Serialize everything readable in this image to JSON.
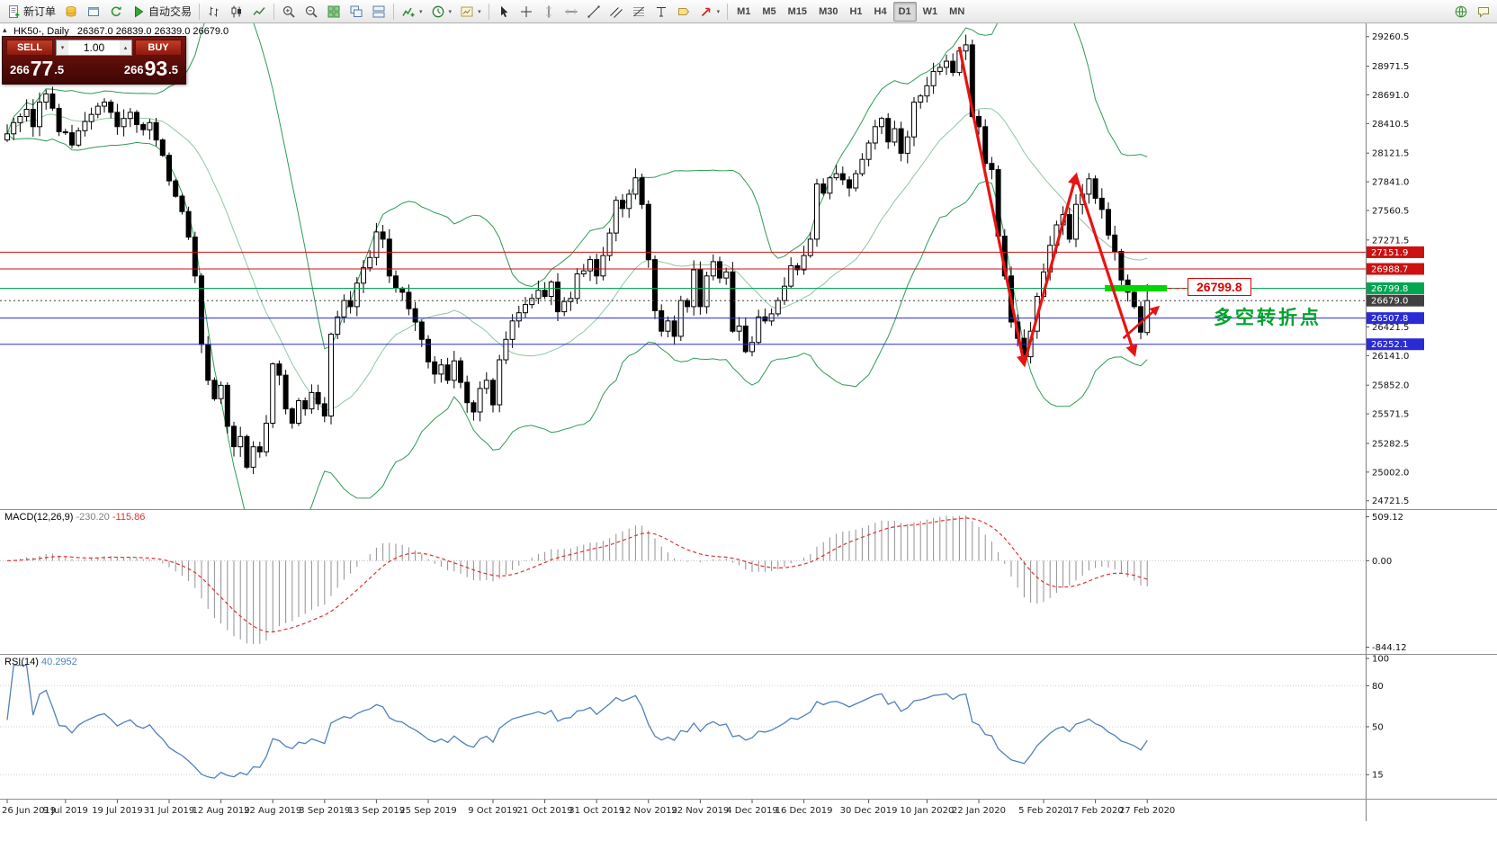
{
  "toolbar": {
    "items": [
      {
        "t": "b",
        "n": "new-order",
        "i": "doc",
        "l": "新订单"
      },
      {
        "t": "b",
        "n": "market-watch",
        "i": "coins"
      },
      {
        "t": "b",
        "n": "data-window",
        "i": "window"
      },
      {
        "t": "b",
        "n": "refresh",
        "i": "refresh"
      },
      {
        "t": "b",
        "n": "auto-trading",
        "i": "play",
        "l": "自动交易"
      },
      {
        "t": "s"
      },
      {
        "t": "b",
        "n": "bar-chart-mode",
        "i": "bars"
      },
      {
        "t": "b",
        "n": "candlestick-mode",
        "i": "candles"
      },
      {
        "t": "b",
        "n": "line-chart-mode",
        "i": "line"
      },
      {
        "t": "s"
      },
      {
        "t": "b",
        "n": "zoom-in",
        "i": "zoomin"
      },
      {
        "t": "b",
        "n": "zoom-out",
        "i": "zoomout"
      },
      {
        "t": "b",
        "n": "tile-windows",
        "i": "tile"
      },
      {
        "t": "b",
        "n": "cascade-windows",
        "i": "cascade"
      },
      {
        "t": "b",
        "n": "arrange-windows",
        "i": "arrange"
      },
      {
        "t": "s"
      },
      {
        "t": "b",
        "n": "indicators",
        "i": "indicator",
        "dd": true
      },
      {
        "t": "b",
        "n": "periods",
        "i": "clock",
        "dd": true
      },
      {
        "t": "b",
        "n": "templates",
        "i": "template",
        "dd": true
      },
      {
        "t": "s"
      },
      {
        "t": "b",
        "n": "cursor-tool",
        "i": "cursor"
      },
      {
        "t": "b",
        "n": "crosshair-tool",
        "i": "cross"
      },
      {
        "t": "b",
        "n": "vertical-line-tool",
        "i": "vline"
      },
      {
        "t": "b",
        "n": "horizontal-line-tool",
        "i": "hline"
      },
      {
        "t": "b",
        "n": "trendline-tool",
        "i": "trend"
      },
      {
        "t": "b",
        "n": "channel-tool",
        "i": "channel"
      },
      {
        "t": "b",
        "n": "fibonacci-tool",
        "i": "fibo"
      },
      {
        "t": "b",
        "n": "text-tool",
        "i": "text"
      },
      {
        "t": "b",
        "n": "label-tool",
        "i": "label"
      },
      {
        "t": "b",
        "n": "arrows-tool",
        "i": "arrow",
        "dd": true
      },
      {
        "t": "s"
      }
    ],
    "timeframes": [
      "M1",
      "M5",
      "M15",
      "M30",
      "H1",
      "H4",
      "D1",
      "W1",
      "MN"
    ],
    "active_timeframe": "D1",
    "right_items": [
      {
        "n": "community",
        "i": "globe"
      },
      {
        "n": "chat",
        "i": "chat"
      }
    ]
  },
  "chart_header": "HK50-, Daily   26367.0 26839.0 26339.0 26679.0",
  "one_click": {
    "sell_label": "SELL",
    "buy_label": "BUY",
    "volume": "1.00",
    "sell_price": {
      "prefix": "266",
      "big": "77",
      "frac": ".5"
    },
    "buy_price": {
      "prefix": "266",
      "big": "93",
      "frac": ".5"
    }
  },
  "chart_data": {
    "type": "candlestick",
    "symbol": "HK50-",
    "timeframe": "Daily",
    "last_ohlc": {
      "open": 26367.0,
      "high": 26839.0,
      "low": 26339.0,
      "close": 26679.0
    },
    "closes": [
      28310,
      28420,
      28480,
      28550,
      28380,
      28620,
      28700,
      28560,
      28330,
      28320,
      28200,
      28340,
      28430,
      28500,
      28580,
      28620,
      28520,
      28380,
      28460,
      28520,
      28400,
      28350,
      28420,
      28250,
      28100,
      27850,
      27700,
      27550,
      27300,
      26920,
      26250,
      25900,
      25720,
      25850,
      25450,
      25250,
      25350,
      25050,
      25250,
      25200,
      25480,
      26060,
      25950,
      25620,
      25480,
      25700,
      25620,
      25780,
      25670,
      25550,
      26350,
      26520,
      26680,
      26620,
      26850,
      27000,
      27100,
      27350,
      27280,
      26920,
      26800,
      26760,
      26600,
      26470,
      26300,
      26080,
      25960,
      26050,
      25900,
      26090,
      25880,
      25680,
      25590,
      25820,
      25900,
      25660,
      26100,
      26300,
      26480,
      26560,
      26640,
      26700,
      26780,
      26720,
      26860,
      26570,
      26670,
      26700,
      26940,
      26970,
      27080,
      26920,
      27120,
      27340,
      27660,
      27580,
      27720,
      27880,
      27620,
      27080,
      26580,
      26380,
      26480,
      26330,
      26680,
      26620,
      26980,
      26620,
      26920,
      27060,
      26900,
      26960,
      26380,
      26430,
      26180,
      26270,
      26520,
      26480,
      26550,
      26680,
      26820,
      27020,
      26980,
      27120,
      27280,
      27820,
      27730,
      27880,
      27920,
      27860,
      27780,
      27920,
      28060,
      28220,
      28380,
      28460,
      28230,
      28360,
      28120,
      28280,
      28620,
      28680,
      28780,
      28920,
      28960,
      29020,
      28910,
      29120,
      29180,
      28480,
      28380,
      28020,
      27960,
      27310,
      26920,
      26470,
      26310,
      26130,
      26380,
      26720,
      26960,
      27220,
      27420,
      27520,
      27280,
      27620,
      27720,
      27870,
      27680,
      27570,
      27320,
      27160,
      26880,
      26760,
      26620,
      26370,
      26679
    ],
    "date_ticks": [
      {
        "i": 0,
        "label": "26 Jun 2019"
      },
      {
        "i": 9,
        "label": "9 Jul 2019"
      },
      {
        "i": 17,
        "label": "19 Jul 2019"
      },
      {
        "i": 25,
        "label": "31 Jul 2019"
      },
      {
        "i": 33,
        "label": "12 Aug 2019"
      },
      {
        "i": 41,
        "label": "22 Aug 2019"
      },
      {
        "i": 49,
        "label": "3 Sep 2019"
      },
      {
        "i": 57,
        "label": "13 Sep 2019"
      },
      {
        "i": 65,
        "label": "25 Sep 2019"
      },
      {
        "i": 75,
        "label": "9 Oct 2019"
      },
      {
        "i": 83,
        "label": "21 Oct 2019"
      },
      {
        "i": 91,
        "label": "31 Oct 2019"
      },
      {
        "i": 99,
        "label": "12 Nov 2019"
      },
      {
        "i": 107,
        "label": "22 Nov 2019"
      },
      {
        "i": 115,
        "label": "4 Dec 2019"
      },
      {
        "i": 123,
        "label": "16 Dec 2019"
      },
      {
        "i": 133,
        "label": "30 Dec 2019"
      },
      {
        "i": 142,
        "label": "10 Jan 2020"
      },
      {
        "i": 150,
        "label": "22 Jan 2020"
      },
      {
        "i": 160,
        "label": "5 Feb 2020"
      },
      {
        "i": 168,
        "label": "17 Feb 2020"
      },
      {
        "i": 176,
        "label": "27 Feb 2020"
      }
    ],
    "y_ticks": [
      29260.5,
      28971.5,
      28691.0,
      28410.5,
      28121.5,
      27841.0,
      27560.5,
      27271.5,
      26421.5,
      26141.0,
      25852.0,
      25571.5,
      25282.5,
      25002.0,
      24721.5
    ],
    "price_tags": [
      {
        "value": 27151.9,
        "color": "#cc1111",
        "line": "solid"
      },
      {
        "value": 26988.7,
        "color": "#cc1111",
        "line": "solid"
      },
      {
        "value": 26799.8,
        "color": "#00a651",
        "line": "solid"
      },
      {
        "value": 26679.0,
        "color": "#404040",
        "line": "dotted"
      },
      {
        "value": 26507.8,
        "color": "#2b2bd5",
        "line": "solid"
      },
      {
        "value": 26252.1,
        "color": "#2b2bd5",
        "line": "solid"
      }
    ],
    "bollinger": {
      "period": 20,
      "deviation": 2,
      "color": "#2e9b57"
    },
    "macd": {
      "label": "MACD(12,26,9)",
      "value_main": "-230.20",
      "value_signal": "-115.86",
      "scale_max": "509.12",
      "scale_zero": "0.00",
      "scale_min": "-844.12",
      "histogram_color": "#909090",
      "signal_color": "#e23030"
    },
    "rsi": {
      "label": "RSI(14)",
      "value": "40.2952",
      "scale": [
        100,
        80,
        50,
        15
      ],
      "levels": [
        80,
        50,
        15
      ],
      "line_color": "#4f81bd"
    },
    "annotations": {
      "zigzag": {
        "color": "#e81313",
        "points": [
          [
            147,
            29160
          ],
          [
            157,
            26060
          ],
          [
            165,
            27900
          ],
          [
            174,
            26160
          ]
        ]
      },
      "small_arrow": {
        "color": "#e81313",
        "points": [
          [
            172.3,
            26310
          ],
          [
            177.6,
            26610
          ]
        ]
      },
      "highlight": {
        "price": 26799.8,
        "color": "#00d800"
      },
      "price_label": "26799.8",
      "note_text": "多空转折点",
      "note_color": "#00a32e"
    }
  }
}
